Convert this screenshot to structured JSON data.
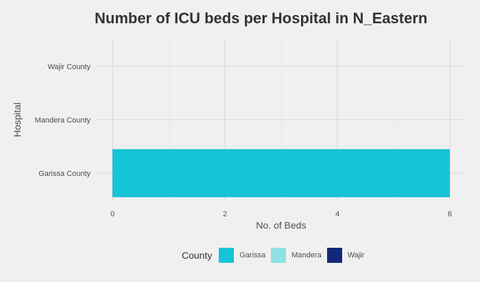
{
  "chart_data": {
    "type": "bar",
    "orientation": "horizontal",
    "title": "Number of ICU beds per Hospital in N_Eastern",
    "xlabel": "No. of Beds",
    "ylabel": "Hospital",
    "categories": [
      "Garissa County",
      "Mandera County",
      "Wajir County"
    ],
    "series": [
      {
        "values": [
          6,
          0,
          0
        ],
        "fill_colors": [
          "#17c3d6",
          "#8ee0e2",
          "#14287a"
        ]
      }
    ],
    "xlim": [
      0,
      6
    ],
    "xticks": [
      0,
      2,
      4,
      6
    ],
    "grid": true,
    "legend": {
      "title": "County",
      "placement": "bottom",
      "entries": [
        {
          "label": "Garissa",
          "color": "#17c3d6"
        },
        {
          "label": "Mandera",
          "color": "#8ee0e2"
        },
        {
          "label": "Wajir",
          "color": "#14287a"
        }
      ]
    }
  }
}
